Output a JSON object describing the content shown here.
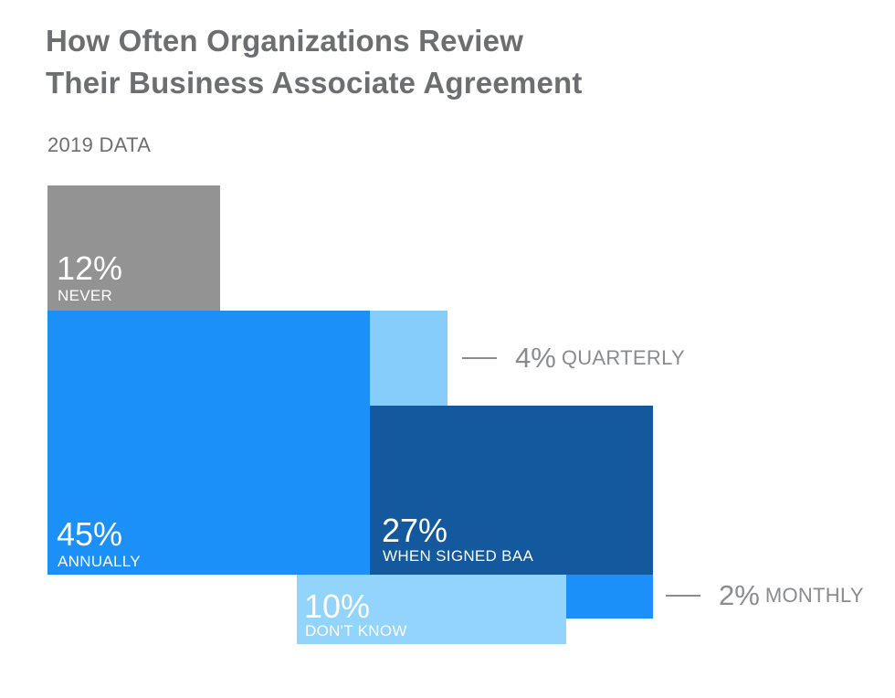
{
  "title_lines": [
    "How Often Organizations Review",
    "Their Business Associate Agreement"
  ],
  "subtitle": "2019 DATA",
  "colors": {
    "never": "#939394",
    "annually": "#1a90f8",
    "quarterly": "#86cdfb",
    "when_signed": "#14589e",
    "monthly": "#1a90f8",
    "dont_know": "#92d4fc"
  },
  "chart_data": {
    "type": "treemap",
    "title": "How Often Organizations Review Their Business Associate Agreement",
    "subtitle": "2019 DATA",
    "segments": [
      {
        "key": "never",
        "label": "NEVER",
        "value": 12,
        "display": "12%"
      },
      {
        "key": "annually",
        "label": "ANNUALLY",
        "value": 45,
        "display": "45%"
      },
      {
        "key": "quarterly",
        "label": "QUARTERLY",
        "value": 4,
        "display": "4%"
      },
      {
        "key": "when_signed",
        "label": "WHEN SIGNED BAA",
        "value": 27,
        "display": "27%"
      },
      {
        "key": "monthly",
        "label": "MONTHLY",
        "value": 2,
        "display": "2%"
      },
      {
        "key": "dont_know",
        "label": "DON'T KNOW",
        "value": 10,
        "display": "10%"
      }
    ]
  }
}
